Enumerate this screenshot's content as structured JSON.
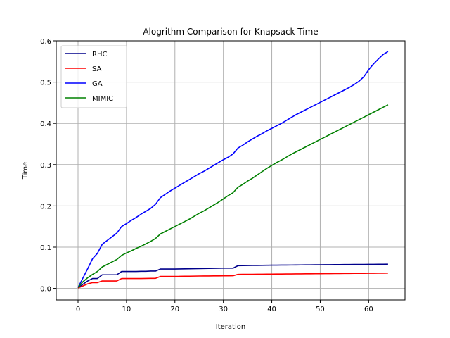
{
  "chart_data": {
    "type": "line",
    "title": "Alogrithm Comparison for Knapsack Time",
    "xlabel": "Iteration",
    "ylabel": "Time",
    "xlim": [
      -4.5,
      67.5
    ],
    "ylim": [
      -0.028,
      0.6
    ],
    "xticks": [
      0,
      10,
      20,
      30,
      40,
      50,
      60
    ],
    "yticks": [
      0.0,
      0.1,
      0.2,
      0.3,
      0.4,
      0.5,
      0.6
    ],
    "grid": true,
    "legend_position": "upper-left",
    "x": [
      0,
      1,
      2,
      3,
      4,
      5,
      6,
      7,
      8,
      9,
      10,
      11,
      12,
      13,
      14,
      15,
      16,
      17,
      18,
      19,
      20,
      21,
      22,
      23,
      24,
      25,
      26,
      27,
      28,
      29,
      30,
      31,
      32,
      33,
      34,
      35,
      36,
      37,
      38,
      39,
      40,
      41,
      42,
      43,
      44,
      45,
      46,
      47,
      48,
      49,
      50,
      51,
      52,
      53,
      54,
      55,
      56,
      57,
      58,
      59,
      60,
      61,
      62,
      63,
      64
    ],
    "series": [
      {
        "name": "RHC",
        "color": "#00008b",
        "values": [
          0.001,
          0.01,
          0.018,
          0.024,
          0.024,
          0.033,
          0.033,
          0.033,
          0.033,
          0.041,
          0.041,
          0.041,
          0.041,
          0.0415,
          0.0415,
          0.042,
          0.042,
          0.047,
          0.047,
          0.047,
          0.047,
          0.0472,
          0.0474,
          0.0476,
          0.0478,
          0.048,
          0.0482,
          0.0484,
          0.0486,
          0.0488,
          0.049,
          0.049,
          0.049,
          0.055,
          0.0552,
          0.0554,
          0.0556,
          0.0558,
          0.056,
          0.0562,
          0.0563,
          0.0564,
          0.0565,
          0.0566,
          0.0567,
          0.0568,
          0.0569,
          0.057,
          0.0571,
          0.0572,
          0.0573,
          0.0574,
          0.0575,
          0.0576,
          0.0577,
          0.0578,
          0.0579,
          0.058,
          0.0581,
          0.0582,
          0.0583,
          0.0584,
          0.0585,
          0.0586,
          0.0587
        ]
      },
      {
        "name": "SA",
        "color": "#ff0000",
        "values": [
          0.001,
          0.006,
          0.011,
          0.014,
          0.014,
          0.018,
          0.018,
          0.018,
          0.018,
          0.024,
          0.024,
          0.024,
          0.024,
          0.024,
          0.0242,
          0.0244,
          0.0244,
          0.029,
          0.029,
          0.029,
          0.029,
          0.0292,
          0.0294,
          0.0296,
          0.0298,
          0.03,
          0.0301,
          0.0302,
          0.0303,
          0.0304,
          0.0305,
          0.0306,
          0.0307,
          0.034,
          0.0341,
          0.0342,
          0.0343,
          0.0344,
          0.0345,
          0.0346,
          0.0347,
          0.0348,
          0.0349,
          0.035,
          0.0351,
          0.0352,
          0.0353,
          0.0354,
          0.0355,
          0.0356,
          0.0357,
          0.0358,
          0.0359,
          0.036,
          0.0361,
          0.0362,
          0.0363,
          0.0364,
          0.0365,
          0.0366,
          0.0367,
          0.0368,
          0.0369,
          0.037,
          0.0371
        ]
      },
      {
        "name": "GA",
        "color": "#0000ff",
        "values": [
          0.002,
          0.025,
          0.048,
          0.072,
          0.085,
          0.107,
          0.116,
          0.125,
          0.134,
          0.15,
          0.157,
          0.165,
          0.172,
          0.18,
          0.187,
          0.194,
          0.204,
          0.22,
          0.228,
          0.236,
          0.243,
          0.25,
          0.257,
          0.264,
          0.271,
          0.278,
          0.284,
          0.291,
          0.298,
          0.305,
          0.312,
          0.318,
          0.326,
          0.34,
          0.347,
          0.355,
          0.362,
          0.369,
          0.375,
          0.382,
          0.388,
          0.394,
          0.4,
          0.407,
          0.414,
          0.421,
          0.427,
          0.433,
          0.439,
          0.445,
          0.451,
          0.457,
          0.463,
          0.469,
          0.475,
          0.481,
          0.487,
          0.494,
          0.502,
          0.513,
          0.53,
          0.544,
          0.556,
          0.567,
          0.574
        ]
      },
      {
        "name": "MIMIC",
        "color": "#008000",
        "values": [
          0.002,
          0.016,
          0.026,
          0.034,
          0.041,
          0.052,
          0.058,
          0.064,
          0.07,
          0.08,
          0.086,
          0.091,
          0.097,
          0.102,
          0.108,
          0.114,
          0.121,
          0.132,
          0.138,
          0.144,
          0.15,
          0.156,
          0.162,
          0.168,
          0.175,
          0.182,
          0.188,
          0.195,
          0.202,
          0.209,
          0.217,
          0.225,
          0.232,
          0.245,
          0.252,
          0.26,
          0.267,
          0.275,
          0.283,
          0.291,
          0.298,
          0.305,
          0.311,
          0.318,
          0.325,
          0.331,
          0.337,
          0.343,
          0.349,
          0.355,
          0.361,
          0.367,
          0.373,
          0.379,
          0.385,
          0.391,
          0.397,
          0.403,
          0.409,
          0.415,
          0.421,
          0.427,
          0.433,
          0.439,
          0.445
        ]
      }
    ]
  }
}
